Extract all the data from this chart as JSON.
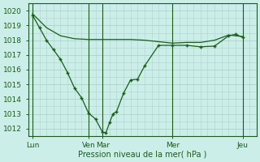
{
  "bg_color": "#cceee8",
  "line_color": "#1a5c1a",
  "grid_color": "#aad4cc",
  "ylabel_values": [
    1012,
    1013,
    1014,
    1015,
    1016,
    1017,
    1018,
    1019,
    1020
  ],
  "x_ticks": [
    0,
    4,
    5,
    10,
    15
  ],
  "x_tick_labels": [
    "Lun",
    "Ven",
    "Mar",
    "Mer",
    "Jeu"
  ],
  "xlabel": "Pression niveau de la mer( hPa )",
  "ylim": [
    1011.5,
    1020.5
  ],
  "xlim": [
    -0.3,
    16.0
  ],
  "smooth_line": {
    "x": [
      0,
      1,
      2,
      3,
      4,
      5,
      6,
      7,
      8,
      9,
      10,
      11,
      12,
      13,
      14,
      15
    ],
    "y": [
      1019.8,
      1018.85,
      1018.3,
      1018.1,
      1018.05,
      1018.05,
      1018.05,
      1018.05,
      1018.0,
      1017.9,
      1017.8,
      1017.85,
      1017.85,
      1018.0,
      1018.35,
      1018.25
    ]
  },
  "marker_line": {
    "x": [
      0,
      0.5,
      1,
      1.5,
      2,
      2.5,
      3,
      3.5,
      4,
      4.5,
      5,
      5.25,
      5.5,
      5.75,
      6,
      6.5,
      7,
      7.5,
      8,
      9,
      10,
      11,
      12,
      13,
      14,
      14.5,
      15
    ],
    "y": [
      1019.7,
      1018.85,
      1018.0,
      1017.35,
      1016.7,
      1015.8,
      1014.75,
      1014.1,
      1013.05,
      1012.65,
      1011.75,
      1011.73,
      1012.4,
      1013.0,
      1013.15,
      1014.4,
      1015.3,
      1015.35,
      1016.25,
      1017.65,
      1017.65,
      1017.65,
      1017.55,
      1017.6,
      1018.3,
      1018.4,
      1018.2
    ]
  }
}
